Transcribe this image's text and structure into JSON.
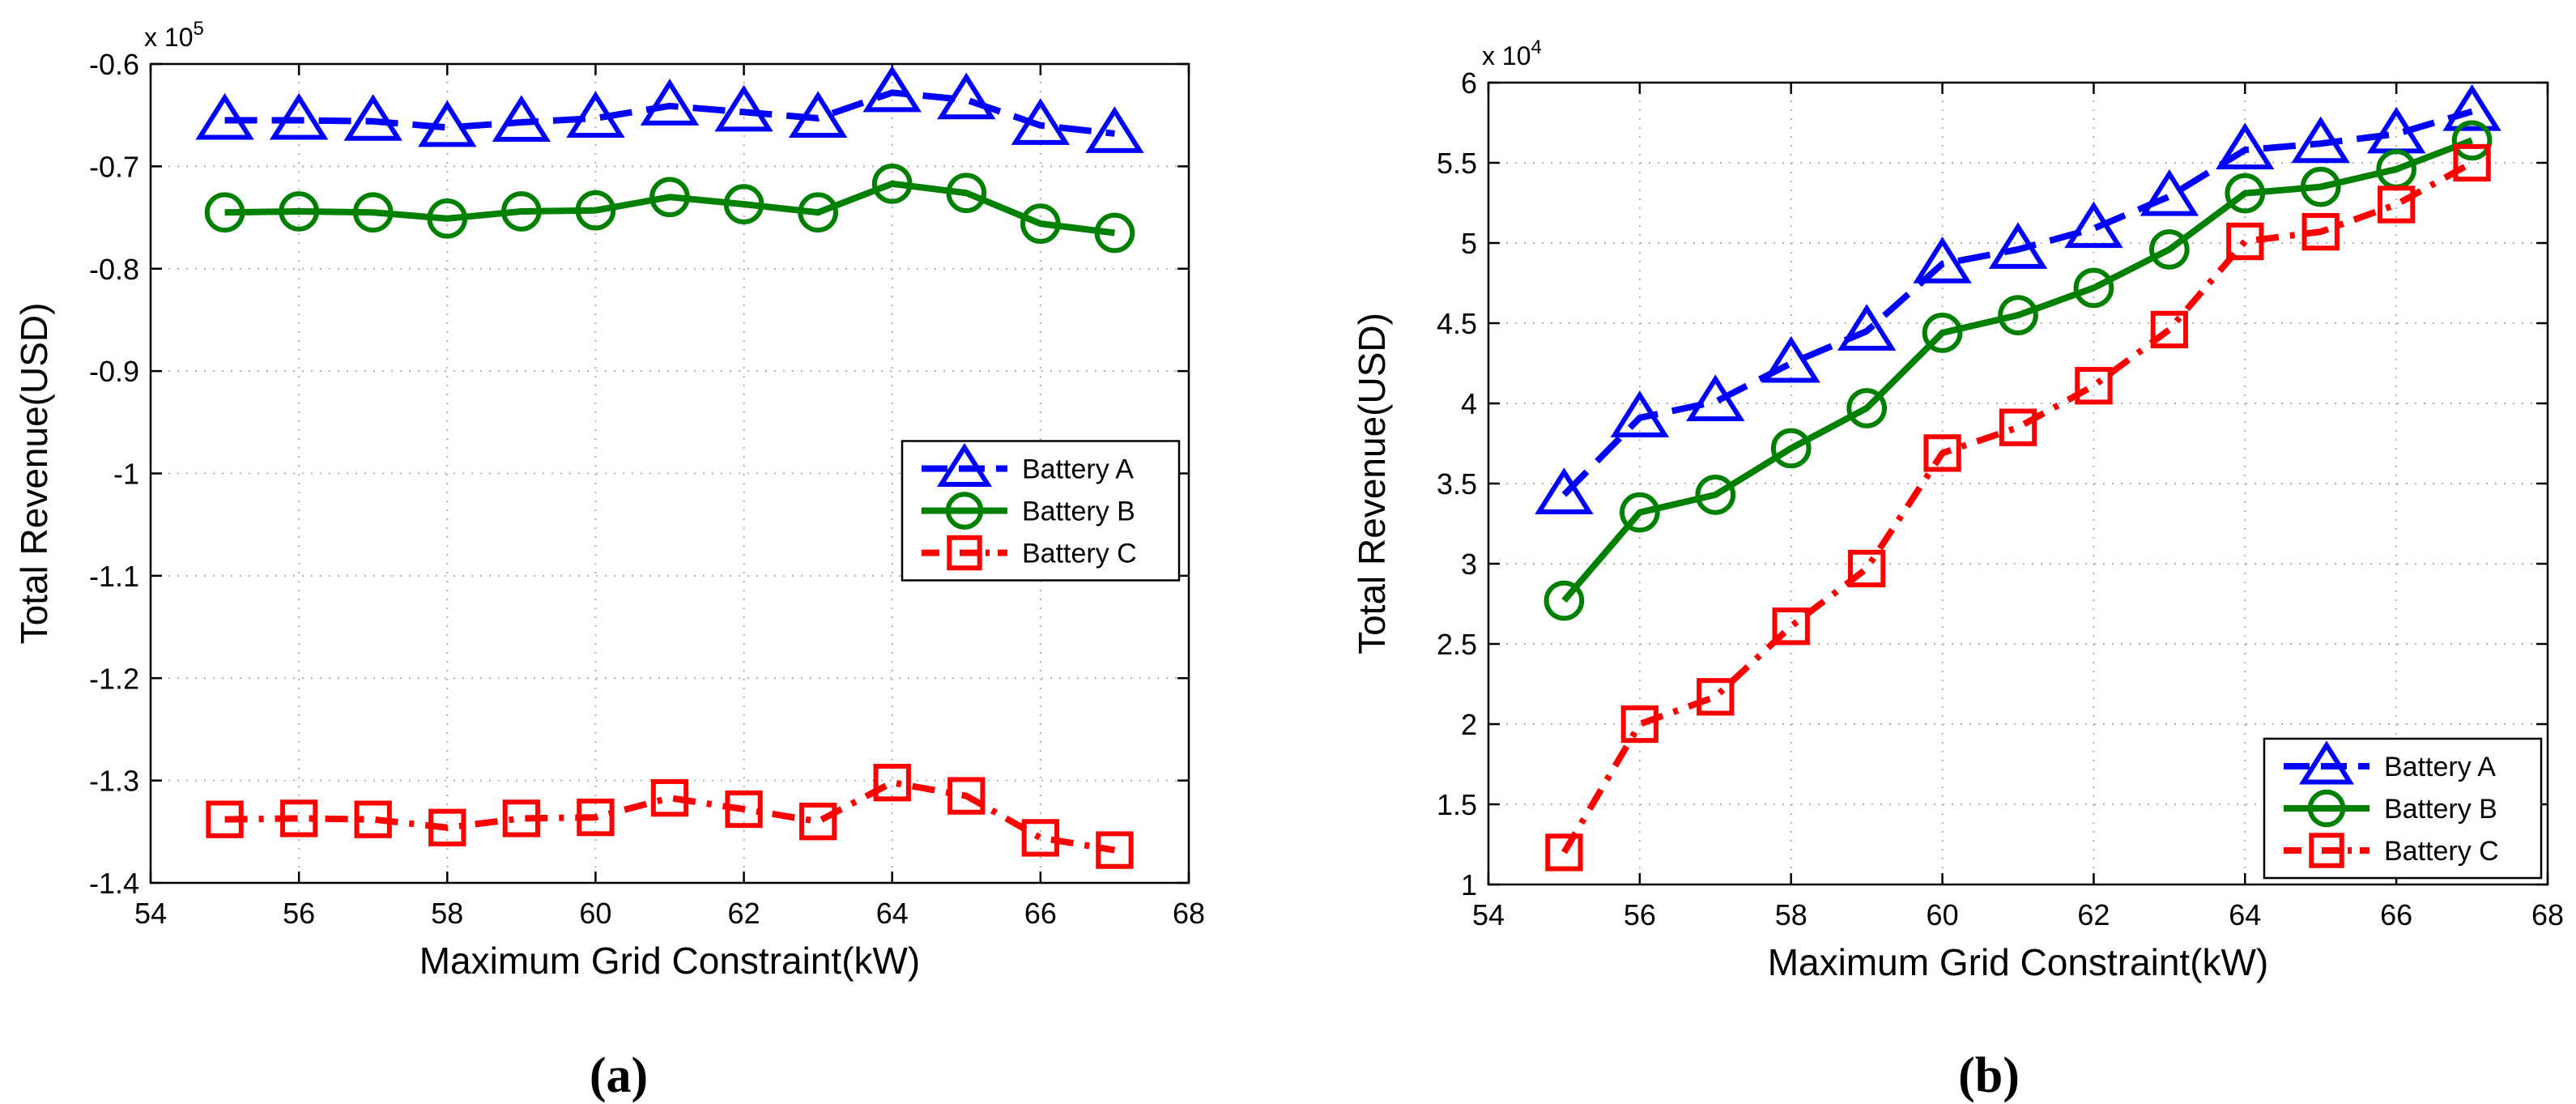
{
  "panels": [
    {
      "caption": "(a)",
      "chart_data": {
        "type": "line",
        "xlabel": "Maximum Grid Constraint(kW)",
        "ylabel": "Total Revenue(USD)",
        "exponent_label": "x 10",
        "exponent_power": "5",
        "xlim": [
          54,
          68
        ],
        "ylim": [
          -1.4,
          -0.6
        ],
        "xticks": [
          54,
          56,
          58,
          60,
          62,
          64,
          66,
          68
        ],
        "yticks": [
          -1.4,
          -1.3,
          -1.2,
          -1.1,
          -1,
          -0.9,
          -0.8,
          -0.7,
          -0.6
        ],
        "xtick_labels": [
          "54",
          "56",
          "58",
          "60",
          "62",
          "64",
          "66",
          "68"
        ],
        "ytick_labels": [
          "-1.4",
          "-1.3",
          "-1.2",
          "-1.1",
          "-1",
          "-0.9",
          "-0.8",
          "-0.7",
          "-0.6"
        ],
        "grid": true,
        "legend_position": "center-right",
        "x": [
          55,
          56,
          57,
          58,
          59,
          60,
          61,
          62,
          63,
          64,
          65,
          66,
          67
        ],
        "series": [
          {
            "name": "Battery A",
            "color": "#0000ff",
            "marker": "triangle",
            "dash": "dashed",
            "values": [
              -0.655,
              -0.655,
              -0.656,
              -0.662,
              -0.657,
              -0.653,
              -0.641,
              -0.647,
              -0.653,
              -0.628,
              -0.635,
              -0.66,
              -0.668
            ]
          },
          {
            "name": "Battery B",
            "color": "#008000",
            "marker": "circle",
            "dash": "solid",
            "values": [
              -0.745,
              -0.744,
              -0.745,
              -0.751,
              -0.744,
              -0.743,
              -0.73,
              -0.737,
              -0.745,
              -0.717,
              -0.726,
              -0.756,
              -0.765
            ]
          },
          {
            "name": "Battery C",
            "color": "#ff0000",
            "marker": "square",
            "dash": "dashdot",
            "values": [
              -1.338,
              -1.337,
              -1.338,
              -1.346,
              -1.337,
              -1.336,
              -1.317,
              -1.328,
              -1.34,
              -1.302,
              -1.315,
              -1.356,
              -1.368
            ]
          }
        ]
      }
    },
    {
      "caption": "(b)",
      "chart_data": {
        "type": "line",
        "xlabel": "Maximum Grid Constraint(kW)",
        "ylabel": "Total Revenue(USD)",
        "exponent_label": "x 10",
        "exponent_power": "4",
        "xlim": [
          54,
          68
        ],
        "ylim": [
          1,
          6
        ],
        "xticks": [
          54,
          56,
          58,
          60,
          62,
          64,
          66,
          68
        ],
        "yticks": [
          1,
          1.5,
          2,
          2.5,
          3,
          3.5,
          4,
          4.5,
          5,
          5.5,
          6
        ],
        "xtick_labels": [
          "54",
          "56",
          "58",
          "60",
          "62",
          "64",
          "66",
          "68"
        ],
        "ytick_labels": [
          "1",
          "1.5",
          "2",
          "2.5",
          "3",
          "3.5",
          "4",
          "4.5",
          "5",
          "5.5",
          "6"
        ],
        "grid": true,
        "legend_position": "bottom-right",
        "x": [
          55,
          56,
          57,
          58,
          59,
          60,
          61,
          62,
          63,
          64,
          65,
          66,
          67
        ],
        "series": [
          {
            "name": "Battery A",
            "color": "#0000ff",
            "marker": "triangle",
            "dash": "dashed",
            "values": [
              3.43,
              3.91,
              4.01,
              4.25,
              4.45,
              4.87,
              4.96,
              5.09,
              5.29,
              5.58,
              5.62,
              5.68,
              5.82
            ]
          },
          {
            "name": "Battery B",
            "color": "#008000",
            "marker": "circle",
            "dash": "solid",
            "values": [
              2.77,
              3.32,
              3.43,
              3.72,
              3.97,
              4.44,
              4.55,
              4.72,
              4.96,
              5.31,
              5.35,
              5.46,
              5.64
            ]
          },
          {
            "name": "Battery C",
            "color": "#ff0000",
            "marker": "square",
            "dash": "dashdot",
            "values": [
              1.2,
              2.0,
              2.17,
              2.61,
              2.97,
              3.69,
              3.85,
              4.11,
              4.46,
              5.01,
              5.07,
              5.24,
              5.5
            ]
          }
        ]
      }
    }
  ]
}
